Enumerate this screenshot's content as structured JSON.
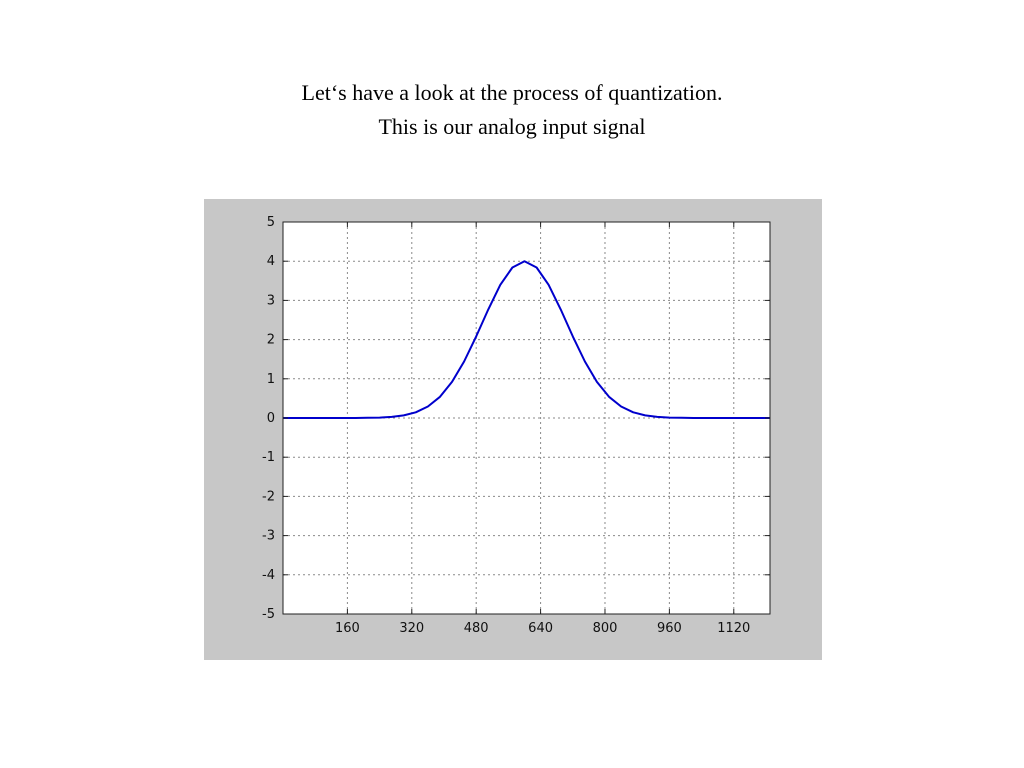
{
  "title": {
    "line1": "Let‘s have a look at the process of quantization.",
    "line2": "This is our analog input signal"
  },
  "figure": {
    "panel_color": "#c7c7c7",
    "plot_background": "#ffffff",
    "axis_color": "#222222",
    "grid_color": "#8a8a8a"
  },
  "chart_data": {
    "type": "line",
    "title": "",
    "xlabel": "",
    "ylabel": "",
    "xlim": [
      0,
      1210
    ],
    "ylim": [
      -5,
      5
    ],
    "grid": true,
    "legend": "none",
    "line_color": "#0000cc",
    "x_ticks": [
      160,
      320,
      480,
      640,
      800,
      960,
      1120
    ],
    "y_ticks": [
      5,
      4,
      3,
      2,
      1,
      0,
      -1,
      -2,
      -3,
      -4,
      -5
    ],
    "series": [
      {
        "name": "analog input signal",
        "x": [
          0,
          30,
          60,
          90,
          120,
          150,
          180,
          210,
          240,
          270,
          300,
          330,
          360,
          390,
          420,
          450,
          480,
          510,
          540,
          570,
          600,
          630,
          660,
          690,
          720,
          750,
          780,
          810,
          840,
          870,
          900,
          930,
          960,
          990,
          1020,
          1050,
          1080,
          1110,
          1140,
          1170,
          1200,
          1210
        ],
        "y": [
          0,
          0,
          0,
          0,
          0,
          0,
          0.001,
          0.004,
          0.011,
          0.029,
          0.067,
          0.146,
          0.294,
          0.541,
          0.92,
          1.442,
          2.082,
          2.77,
          3.397,
          3.84,
          4,
          3.84,
          3.397,
          2.77,
          2.082,
          1.442,
          0.92,
          0.541,
          0.294,
          0.146,
          0.067,
          0.029,
          0.011,
          0.004,
          0.001,
          0,
          0,
          0,
          0,
          0,
          0,
          0
        ]
      }
    ]
  }
}
